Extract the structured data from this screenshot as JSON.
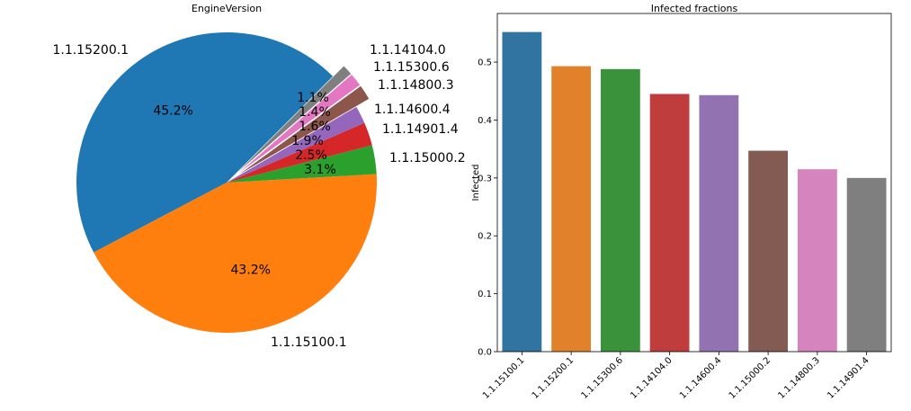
{
  "chart_data": [
    {
      "type": "pie",
      "title": "EngineVersion",
      "start_angle_deg": 45,
      "slices": [
        {
          "label": "1.1.15200.1",
          "value": 45.2,
          "pct_label": "45.2%",
          "color": "#1f77b4",
          "explode": 0
        },
        {
          "label": "1.1.15100.1",
          "value": 43.2,
          "pct_label": "43.2%",
          "color": "#ff7f0e",
          "explode": 0
        },
        {
          "label": "1.1.15000.2",
          "value": 3.1,
          "pct_label": "3.1%",
          "color": "#2ca02c",
          "explode": 0
        },
        {
          "label": "1.1.14901.4",
          "value": 2.5,
          "pct_label": "2.5%",
          "color": "#d62728",
          "explode": 0
        },
        {
          "label": "1.1.14600.4",
          "value": 1.9,
          "pct_label": "1.9%",
          "color": "#9467bd",
          "explode": 0
        },
        {
          "label": "1.1.14800.3",
          "value": 1.6,
          "pct_label": "1.6%",
          "color": "#8c564b",
          "explode": 0.1
        },
        {
          "label": "1.1.15300.6",
          "value": 1.4,
          "pct_label": "1.4%",
          "color": "#e377c2",
          "explode": 0.1
        },
        {
          "label": "1.1.14104.0",
          "value": 1.1,
          "pct_label": "1.1%",
          "color": "#7f7f7f",
          "explode": 0.1
        }
      ]
    },
    {
      "type": "bar",
      "title": "Infected fractions",
      "xlabel": "",
      "ylabel": "Infected",
      "ylim": [
        0,
        0.584
      ],
      "yticks": [
        "0.0",
        "0.1",
        "0.2",
        "0.3",
        "0.4",
        "0.5"
      ],
      "categories": [
        "1.1.15100.1",
        "1.1.15200.1",
        "1.1.15300.6",
        "1.1.14104.0",
        "1.1.14600.4",
        "1.1.15000.2",
        "1.1.14800.3",
        "1.1.14901.4"
      ],
      "values": [
        0.552,
        0.493,
        0.488,
        0.445,
        0.443,
        0.347,
        0.315,
        0.3
      ],
      "colors": [
        "#3274a1",
        "#e1812c",
        "#3a923a",
        "#c03d3e",
        "#9372b2",
        "#845b53",
        "#d684bd",
        "#7f7f7f"
      ]
    }
  ]
}
